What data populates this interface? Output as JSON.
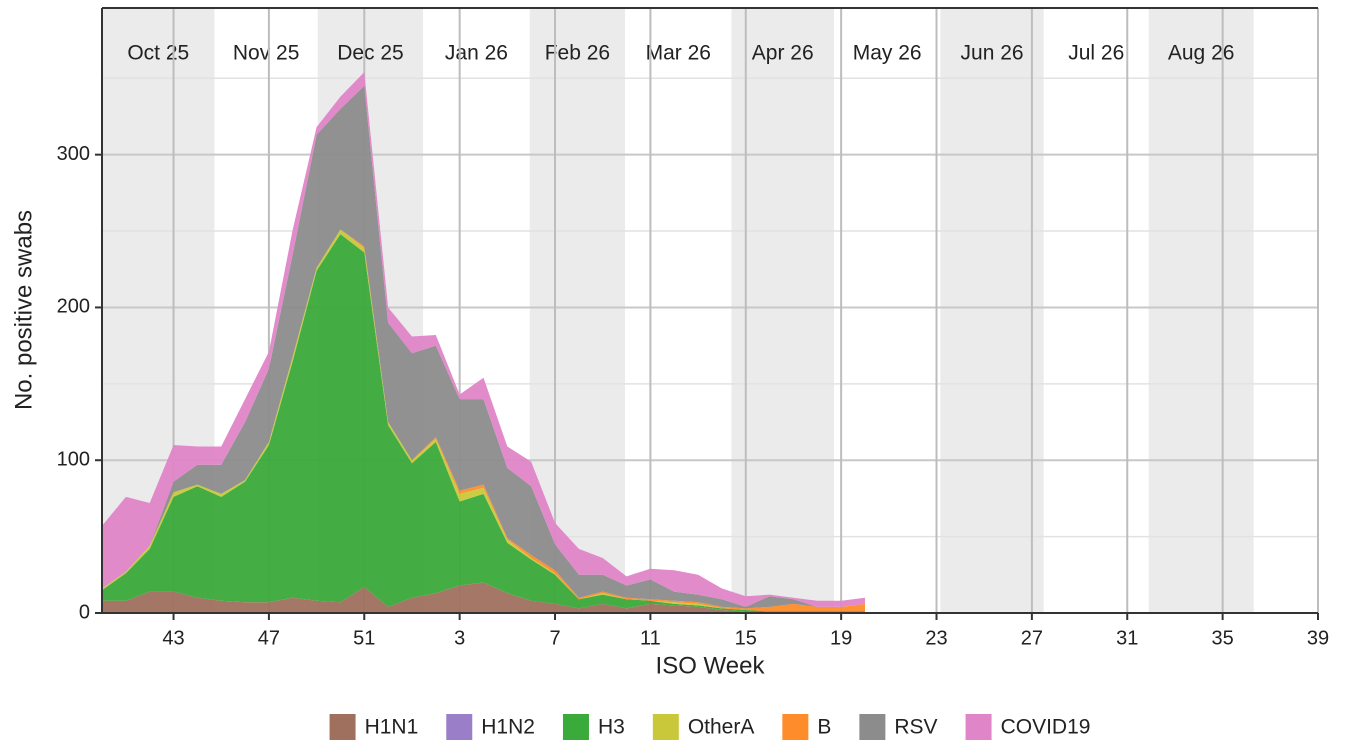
{
  "chart_data": {
    "type": "stacked_area",
    "x_label": "ISO Week",
    "y_label": "No. positive swabs",
    "categories": [
      40,
      41,
      42,
      43,
      44,
      45,
      46,
      47,
      48,
      49,
      50,
      51,
      52,
      1,
      2,
      3,
      4,
      5,
      6,
      7,
      8,
      9,
      10,
      11,
      12,
      13,
      14,
      15,
      16,
      17,
      18,
      19,
      20,
      21,
      22,
      23,
      24,
      25,
      26,
      27,
      28,
      29,
      30,
      31,
      32,
      33,
      34,
      35,
      36,
      37,
      38,
      39
    ],
    "xticks": [
      43,
      47,
      51,
      3,
      7,
      11,
      15,
      19,
      23,
      27,
      31,
      35,
      39
    ],
    "ylim": [
      0,
      396
    ],
    "yticks": [
      0,
      100,
      200,
      300
    ],
    "minor_yticks": [
      50,
      150,
      250,
      350
    ],
    "grid": true,
    "band_colors": [
      "#ebebeb",
      "#ffffff"
    ],
    "month_bands": [
      {
        "label": "Oct 25",
        "start": 0,
        "end": 4.72
      },
      {
        "label": "Nov 25",
        "start": 4.72,
        "end": 9.05
      },
      {
        "label": "Dec 25",
        "start": 9.05,
        "end": 13.47
      },
      {
        "label": "Jan 26",
        "start": 13.47,
        "end": 17.94
      },
      {
        "label": "Feb 26",
        "start": 17.94,
        "end": 21.94
      },
      {
        "label": "Mar 26",
        "start": 21.94,
        "end": 26.4
      },
      {
        "label": "Apr 26",
        "start": 26.4,
        "end": 30.7
      },
      {
        "label": "May 26",
        "start": 30.7,
        "end": 35.16
      },
      {
        "label": "Jun 26",
        "start": 35.16,
        "end": 39.5
      },
      {
        "label": "Jul 26",
        "start": 39.5,
        "end": 43.9
      },
      {
        "label": "Aug 26",
        "start": 43.9,
        "end": 48.3
      }
    ],
    "series": [
      {
        "name": "H1N1",
        "color": "#a0705f",
        "values": [
          8,
          8,
          14,
          14,
          10,
          8,
          7,
          7,
          10,
          8,
          7,
          17,
          4,
          10,
          13,
          18,
          20,
          13,
          8,
          6,
          3,
          6,
          3,
          6,
          5,
          4,
          2,
          1,
          1,
          1,
          1,
          1,
          1,
          null,
          null,
          null,
          null,
          null,
          null,
          null,
          null,
          null,
          null,
          null,
          null,
          null,
          null,
          null,
          null,
          null,
          null,
          null
        ]
      },
      {
        "name": "H1N2",
        "color": "#9b7ec8",
        "values": [
          0,
          0,
          0,
          0,
          0,
          0,
          0,
          0,
          0,
          0,
          0,
          0,
          0,
          0,
          0,
          0,
          0,
          0,
          0,
          0,
          0,
          0,
          0,
          0,
          0,
          0,
          0,
          0,
          0,
          0,
          0,
          0,
          0,
          null,
          null,
          null,
          null,
          null,
          null,
          null,
          null,
          null,
          null,
          null,
          null,
          null,
          null,
          null,
          null,
          null,
          null,
          null
        ]
      },
      {
        "name": "H3",
        "color": "#3aaa3a",
        "values": [
          7,
          18,
          28,
          62,
          73,
          68,
          79,
          103,
          155,
          216,
          241,
          219,
          119,
          88,
          99,
          55,
          58,
          33,
          27,
          19,
          6,
          6,
          6,
          2,
          1,
          1,
          1,
          1,
          0,
          0,
          0,
          0,
          0,
          null,
          null,
          null,
          null,
          null,
          null,
          null,
          null,
          null,
          null,
          null,
          null,
          null,
          null,
          null,
          null,
          null,
          null,
          null
        ]
      },
      {
        "name": "OtherA",
        "color": "#c8c83a",
        "values": [
          1,
          1,
          2,
          3,
          1,
          2,
          1,
          2,
          3,
          2,
          3,
          3,
          2,
          2,
          2,
          5,
          4,
          2,
          1,
          1,
          0,
          1,
          0,
          0,
          1,
          1,
          0,
          0,
          0,
          0,
          0,
          0,
          0,
          null,
          null,
          null,
          null,
          null,
          null,
          null,
          null,
          null,
          null,
          null,
          null,
          null,
          null,
          null,
          null,
          null,
          null,
          null
        ]
      },
      {
        "name": "B",
        "color": "#ff8c2a",
        "values": [
          0,
          0,
          0,
          0,
          0,
          0,
          0,
          0,
          0,
          0,
          0,
          1,
          0,
          0,
          1,
          2,
          2,
          1,
          2,
          2,
          1,
          1,
          1,
          1,
          1,
          1,
          1,
          1,
          3,
          5,
          3,
          3,
          5,
          null,
          null,
          null,
          null,
          null,
          null,
          null,
          null,
          null,
          null,
          null,
          null,
          null,
          null,
          null,
          null,
          null,
          null,
          null
        ]
      },
      {
        "name": "RSV",
        "color": "#8c8c8c",
        "values": [
          0,
          0,
          0,
          7,
          13,
          19,
          38,
          48,
          67,
          87,
          79,
          105,
          65,
          70,
          60,
          60,
          56,
          46,
          45,
          17,
          15,
          11,
          8,
          13,
          6,
          5,
          5,
          1,
          7,
          3,
          0,
          0,
          0,
          null,
          null,
          null,
          null,
          null,
          null,
          null,
          null,
          null,
          null,
          null,
          null,
          null,
          null,
          null,
          null,
          null,
          null,
          null
        ]
      },
      {
        "name": "COVID19",
        "color": "#e085c8",
        "values": [
          41,
          49,
          28,
          24,
          12,
          12,
          15,
          11,
          16,
          5,
          8,
          9,
          10,
          11,
          7,
          3,
          14,
          14,
          16,
          14,
          17,
          11,
          6,
          7,
          14,
          13,
          7,
          7,
          1,
          1,
          4,
          4,
          4,
          null,
          null,
          null,
          null,
          null,
          null,
          null,
          null,
          null,
          null,
          null,
          null,
          null,
          null,
          null,
          null,
          null,
          null,
          null
        ]
      }
    ]
  }
}
